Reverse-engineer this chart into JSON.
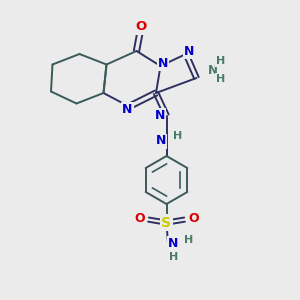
{
  "background_color": "#ebebeb",
  "bond_color": "#2d3060",
  "ring_color": "#3a5a5a",
  "bond_width": 1.4,
  "atom_colors": {
    "N": "#0000cc",
    "O": "#dd0000",
    "S": "#cccc00",
    "C": "#2d3060",
    "H": "#4a7a6a"
  },
  "figsize": [
    3.0,
    3.0
  ],
  "dpi": 100
}
